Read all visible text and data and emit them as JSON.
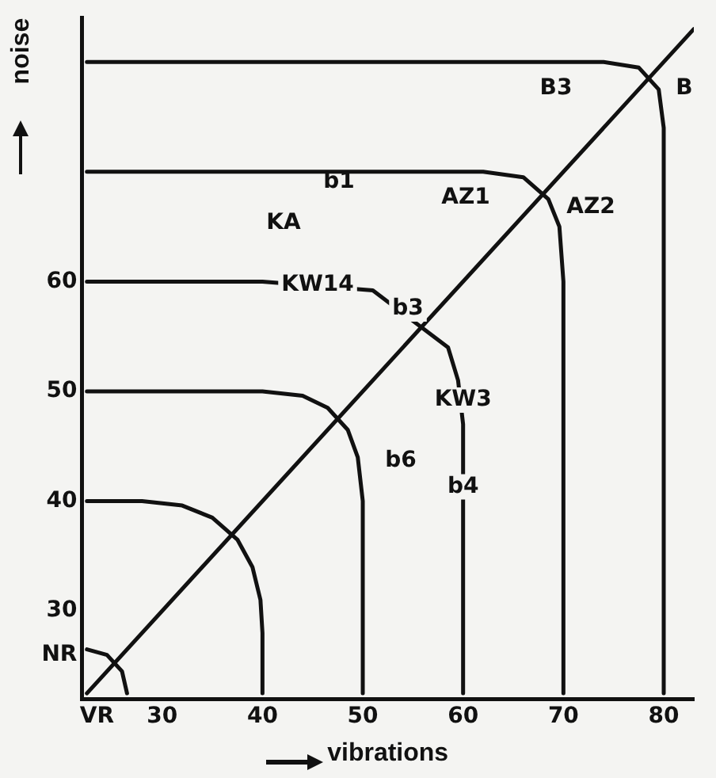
{
  "chart_data": {
    "type": "line",
    "xlabel": "vibrations",
    "ylabel": "noise",
    "xlim": [
      22,
      83
    ],
    "ylim": [
      22,
      84
    ],
    "xticks": [
      {
        "value": 23.5,
        "label": "VR"
      },
      30,
      40,
      50,
      60,
      70,
      80
    ],
    "yticks": [
      {
        "value": 26,
        "label": "NR"
      },
      30,
      40,
      50,
      60
    ],
    "grid": false,
    "legend": false,
    "marker": "none",
    "line_style": "solid",
    "series": [
      {
        "color": "#111111",
        "x": [
          22.5,
          24.5,
          26,
          26.5
        ],
        "values": [
          26.5,
          26,
          24.5,
          22.5
        ]
      },
      {
        "color": "#111111",
        "x": [
          22.5,
          28,
          32,
          35,
          37.5,
          39,
          39.8,
          40,
          40
        ],
        "values": [
          40,
          40,
          39.6,
          38.5,
          36.5,
          34,
          31,
          28,
          22.5
        ]
      },
      {
        "color": "#111111",
        "x": [
          22.5,
          40,
          44,
          46.5,
          48.5,
          49.5,
          50,
          50
        ],
        "values": [
          50,
          50,
          49.6,
          48.5,
          46.5,
          44,
          40,
          22.5
        ]
      },
      {
        "color": "#111111",
        "x": [
          22.5,
          40,
          51,
          58.5,
          59.5,
          60,
          60
        ],
        "values": [
          60,
          60,
          59.2,
          54,
          51,
          47,
          22.5
        ]
      },
      {
        "color": "#111111",
        "x": [
          22.5,
          62,
          66,
          68.5,
          69.6,
          70,
          70
        ],
        "values": [
          70,
          70,
          69.5,
          67.5,
          65,
          60,
          22.5
        ]
      },
      {
        "color": "#111111",
        "x": [
          22.5,
          74,
          77.5,
          79.5,
          80,
          80
        ],
        "values": [
          80,
          80,
          79.5,
          77.5,
          74,
          22.5
        ]
      },
      {
        "color": "#111111",
        "x": [
          22.5,
          83
        ],
        "values": [
          22.5,
          83
        ]
      }
    ],
    "annotations": [
      "B3",
      "B",
      "b1",
      "AZ1",
      "AZ2",
      "KA",
      "b6",
      {
        "text": "KW14",
        "x": 45.5,
        "y": 59.7
      },
      {
        "text": "b3",
        "x": 54.5,
        "y": 57.5
      },
      {
        "text": "KW3",
        "x": 60,
        "y": 49.2
      },
      {
        "text": "b4",
        "x": 60,
        "y": 41.3
      }
    ]
  }
}
